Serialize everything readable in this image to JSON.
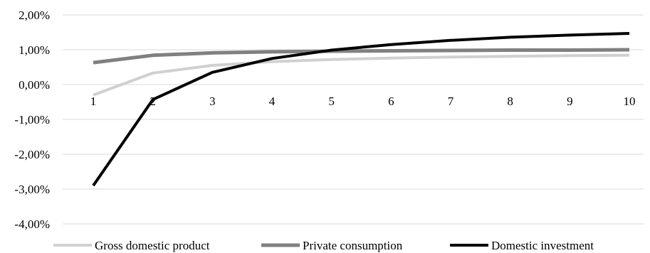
{
  "chart_data": {
    "type": "line",
    "categories": [
      "1",
      "2",
      "3",
      "4",
      "5",
      "6",
      "7",
      "8",
      "9",
      "10"
    ],
    "x": [
      1,
      2,
      3,
      4,
      5,
      6,
      7,
      8,
      9,
      10
    ],
    "ylim": [
      -4.0,
      2.0
    ],
    "yticks": [
      2.0,
      1.0,
      0.0,
      -1.0,
      -2.0,
      -3.0,
      -4.0
    ],
    "ytick_labels": [
      "2,00%",
      "1,00%",
      "0,00%",
      "-1,00%",
      "-2,00%",
      "-3,00%",
      "-4,00%"
    ],
    "grid": true,
    "legend_position": "bottom",
    "series": [
      {
        "name": "Gross domestic product",
        "color": "#d0d0d0",
        "values": [
          -0.3,
          0.33,
          0.55,
          0.66,
          0.72,
          0.76,
          0.79,
          0.81,
          0.83,
          0.84
        ]
      },
      {
        "name": "Private consumption",
        "color": "#808080",
        "values": [
          0.63,
          0.84,
          0.91,
          0.94,
          0.96,
          0.97,
          0.98,
          0.99,
          0.99,
          1.0
        ]
      },
      {
        "name": "Domestic investment",
        "color": "#000000",
        "values": [
          -2.9,
          -0.43,
          0.35,
          0.75,
          0.99,
          1.15,
          1.27,
          1.36,
          1.42,
          1.47
        ]
      }
    ]
  }
}
